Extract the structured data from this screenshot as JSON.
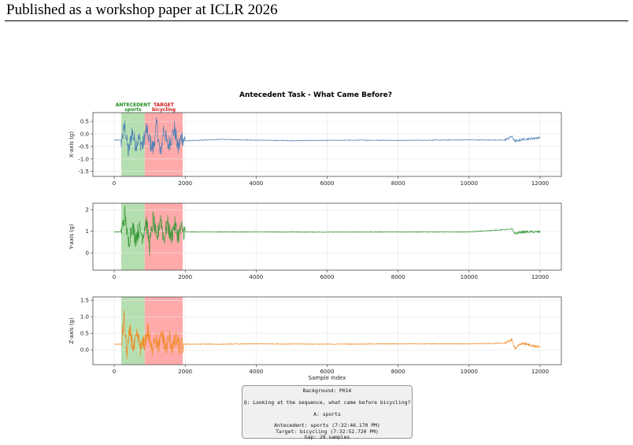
{
  "header": {
    "text": "Published as a workshop paper at ICLR 2026"
  },
  "figure": {
    "title": "Antecedent Task - What Came Before?",
    "region_labels": {
      "antecedent_title": "ANTECEDENT",
      "antecedent_activity": "sports",
      "target_title": "TARGET",
      "target_activity": "bicycling"
    },
    "colors": {
      "antecedent_region": "#b5dfb0",
      "target_region": "#ffaaaa",
      "x_line": "#4a7fb5",
      "y_line": "#3a9a3a",
      "z_line": "#f08a24"
    }
  },
  "chart_data": [
    {
      "type": "line",
      "ylabel": "X-axis (g)",
      "xlabel": "",
      "xlim": [
        -600,
        12600
      ],
      "ylim": [
        -1.7,
        0.85
      ],
      "xticks": [
        "0",
        "2000",
        "4000",
        "6000",
        "8000",
        "10000",
        "12000"
      ],
      "yticks": [
        "0.5",
        "0.0",
        "-0.5",
        "-1.0",
        "-1.5"
      ],
      "regions": [
        {
          "label": "ANTECEDENT",
          "x": [
            200,
            860
          ]
        },
        {
          "label": "TARGET",
          "x": [
            860,
            1930
          ]
        }
      ],
      "baseline": -0.25,
      "series": [
        {
          "x": [
            0,
            200,
            300,
            400,
            500,
            600,
            700,
            800,
            900,
            1000,
            1100,
            1200,
            1300,
            1400,
            1500,
            1600,
            1700,
            1800,
            1900,
            2000,
            3000,
            4000,
            5000,
            6000,
            7000,
            8000,
            9000,
            10000,
            11000,
            11200,
            11300,
            11500,
            11800,
            12000
          ],
          "y": [
            -0.25,
            -0.25,
            0.3,
            -0.8,
            0.1,
            -0.4,
            -0.2,
            -0.5,
            0.2,
            -0.3,
            -0.6,
            0.4,
            -0.9,
            0.3,
            -0.5,
            -0.2,
            0.2,
            -0.6,
            -0.1,
            -0.28,
            -0.22,
            -0.25,
            -0.27,
            -0.26,
            -0.25,
            -0.26,
            -0.25,
            -0.24,
            -0.25,
            -0.1,
            -0.3,
            -0.22,
            -0.18,
            -0.15
          ]
        }
      ]
    },
    {
      "type": "line",
      "ylabel": "Y-axis (g)",
      "xlabel": "",
      "xlim": [
        -600,
        12600
      ],
      "ylim": [
        -0.8,
        2.3
      ],
      "xticks": [
        "0",
        "2000",
        "4000",
        "6000",
        "8000",
        "10000",
        "12000"
      ],
      "yticks": [
        "2",
        "1",
        "0"
      ],
      "regions": [
        {
          "label": "ANTECEDENT",
          "x": [
            200,
            860
          ]
        },
        {
          "label": "TARGET",
          "x": [
            860,
            1930
          ]
        }
      ],
      "baseline": 0.97,
      "series": [
        {
          "x": [
            0,
            200,
            300,
            400,
            500,
            600,
            700,
            800,
            900,
            1000,
            1100,
            1200,
            1300,
            1400,
            1500,
            1600,
            1700,
            1800,
            1900,
            2000,
            4000,
            6000,
            8000,
            10000,
            11200,
            11300,
            11500,
            12000
          ],
          "y": [
            0.97,
            0.97,
            1.8,
            0.4,
            1.3,
            0.7,
            1.1,
            0.8,
            1.5,
            0.3,
            1.6,
            0.5,
            1.7,
            0.6,
            1.4,
            0.7,
            1.3,
            0.8,
            1.1,
            0.97,
            0.97,
            0.96,
            0.97,
            0.97,
            1.1,
            0.9,
            0.97,
            0.97
          ]
        }
      ]
    },
    {
      "type": "line",
      "ylabel": "Z-axis (g)",
      "xlabel": "Sample Index",
      "xlim": [
        -600,
        12600
      ],
      "ylim": [
        -0.45,
        1.6
      ],
      "xticks": [
        "0",
        "2000",
        "4000",
        "6000",
        "8000",
        "10000",
        "12000"
      ],
      "yticks": [
        "1.5",
        "1.0",
        "0.5",
        "0.0"
      ],
      "regions": [
        {
          "label": "ANTECEDENT",
          "x": [
            200,
            860
          ]
        },
        {
          "label": "TARGET",
          "x": [
            860,
            1930
          ]
        }
      ],
      "baseline": 0.17,
      "series": [
        {
          "x": [
            0,
            200,
            280,
            350,
            450,
            550,
            650,
            750,
            850,
            950,
            1050,
            1150,
            1250,
            1350,
            1450,
            1550,
            1650,
            1750,
            1850,
            1950,
            3000,
            4000,
            6000,
            8000,
            10000,
            11000,
            11200,
            11300,
            11500,
            11800,
            12000
          ],
          "y": [
            0.17,
            0.17,
            0.95,
            -0.1,
            0.55,
            0.0,
            0.4,
            0.05,
            0.2,
            0.6,
            -0.05,
            0.45,
            0.05,
            0.5,
            0.0,
            0.35,
            0.1,
            0.3,
            0.05,
            0.17,
            0.17,
            0.18,
            0.17,
            0.18,
            0.18,
            0.2,
            0.3,
            0.05,
            0.2,
            0.12,
            0.08
          ]
        }
      ]
    }
  ],
  "info_box": {
    "background": "Background: P014",
    "question": "Q: Looking at the sequence, what came before bicycling?",
    "answer": "A: sports",
    "antecedent": "Antecedent: sports (7:32:46.170 PM)",
    "target": "Target: bicycling (7:32:52.720 PM)",
    "gap": "Gap: 20 samples"
  }
}
